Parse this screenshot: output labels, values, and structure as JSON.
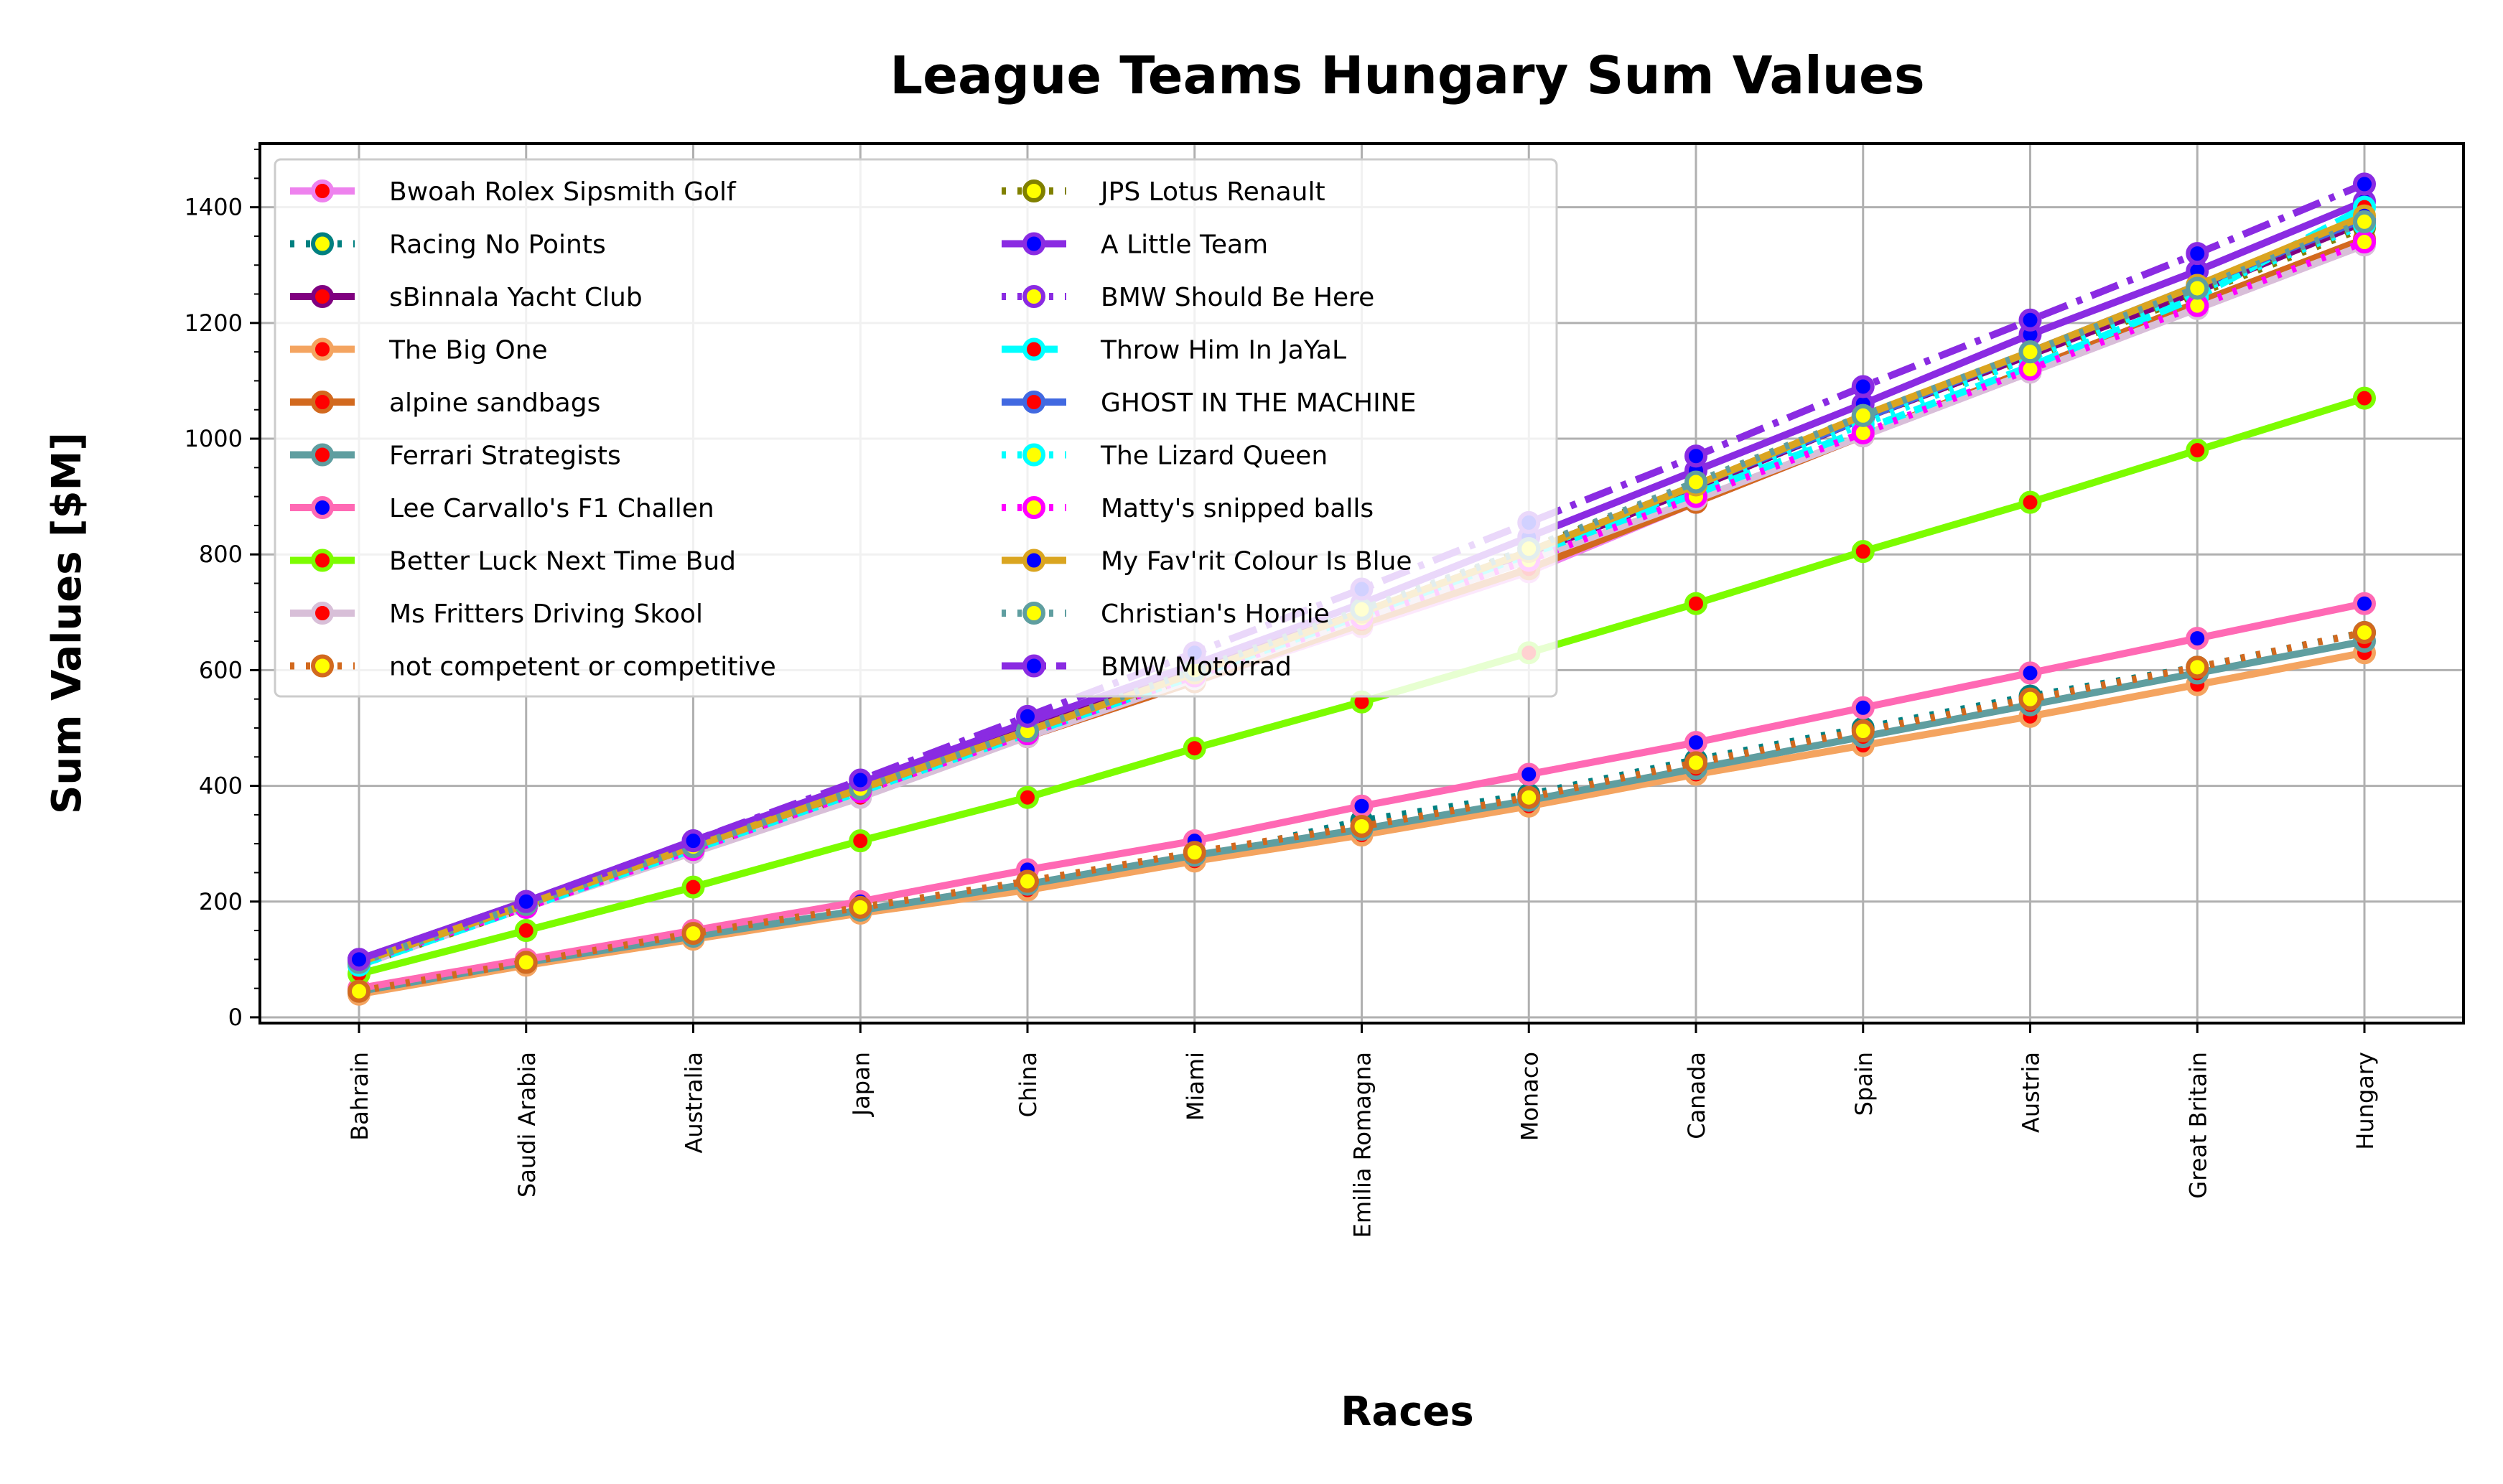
{
  "chart_data": {
    "type": "line",
    "title": "League Teams Hungary Sum Values",
    "xlabel": "Races",
    "ylabel": "Sum Values [$M]",
    "ylim": [
      -10,
      1510
    ],
    "yticks": [
      0,
      200,
      400,
      600,
      800,
      1000,
      1200,
      1400
    ],
    "grid": true,
    "legend_position": "upper-left",
    "categories": [
      "Bahrain",
      "Saudi Arabia",
      "Australia",
      "Japan",
      "China",
      "Miami",
      "Emilia Romagna",
      "Monaco",
      "Canada",
      "Spain",
      "Austria",
      "Great Britain",
      "Hungary"
    ],
    "series": [
      {
        "name": "Bwoah Rolex Sipsmith Golf",
        "color": "#ee82ee",
        "marker_fill": "#ff0000",
        "dash": "solid",
        "values": [
          95,
          195,
          295,
          390,
          485,
          580,
          675,
          770,
          890,
          1005,
          1115,
          1225,
          1335
        ]
      },
      {
        "name": "Racing No Points",
        "color": "#008080",
        "marker_fill": "#ffff00",
        "dash": "dot",
        "values": [
          45,
          95,
          140,
          185,
          225,
          275,
          340,
          385,
          445,
          500,
          555,
          605,
          665
        ]
      },
      {
        "name": "sBinnala Yacht Club",
        "color": "#800080",
        "marker_fill": "#ff0000",
        "dash": "solid",
        "values": [
          100,
          200,
          300,
          400,
          500,
          600,
          700,
          800,
          915,
          1035,
          1145,
          1255,
          1375
        ]
      },
      {
        "name": "The Big One",
        "color": "#f4a460",
        "marker_fill": "#ff0000",
        "dash": "solid",
        "values": [
          40,
          90,
          135,
          180,
          220,
          270,
          315,
          365,
          420,
          470,
          520,
          575,
          630
        ]
      },
      {
        "name": "alpine sandbags",
        "color": "#d2691e",
        "marker_fill": "#ff0000",
        "dash": "solid",
        "values": [
          95,
          190,
          290,
          385,
          485,
          580,
          680,
          775,
          890,
          1005,
          1120,
          1235,
          1345
        ]
      },
      {
        "name": "Ferrari Strategists",
        "color": "#5f9ea0",
        "marker_fill": "#ff0000",
        "dash": "solid",
        "values": [
          45,
          95,
          140,
          185,
          230,
          280,
          325,
          375,
          430,
          485,
          540,
          595,
          650
        ]
      },
      {
        "name": "Lee Carvallo's F1 Challen",
        "color": "#ff69b4",
        "marker_fill": "#0000ff",
        "dash": "solid",
        "values": [
          50,
          100,
          150,
          200,
          255,
          305,
          365,
          420,
          475,
          535,
          595,
          655,
          715
        ]
      },
      {
        "name": "Better Luck Next Time Bud",
        "color": "#7cfc00",
        "marker_fill": "#ff0000",
        "dash": "solid",
        "values": [
          75,
          150,
          225,
          305,
          380,
          465,
          545,
          630,
          715,
          805,
          890,
          980,
          1070
        ]
      },
      {
        "name": "Ms Fritters Driving Skool",
        "color": "#d8bfd8",
        "marker_fill": "#ff0000",
        "dash": "solid",
        "values": [
          90,
          190,
          285,
          380,
          485,
          585,
          690,
          790,
          895,
          1005,
          1115,
          1225,
          1335
        ]
      },
      {
        "name": "not competent or competitive",
        "color": "#d2691e",
        "marker_fill": "#ffff00",
        "dash": "dot",
        "values": [
          45,
          95,
          145,
          190,
          235,
          285,
          330,
          380,
          440,
          495,
          550,
          605,
          665
        ]
      },
      {
        "name": "JPS Lotus Renault",
        "color": "#808000",
        "marker_fill": "#ffff00",
        "dash": "dot",
        "values": [
          90,
          190,
          290,
          390,
          490,
          590,
          700,
          810,
          920,
          1035,
          1140,
          1250,
          1365
        ]
      },
      {
        "name": "A Little Team",
        "color": "#8a2be2",
        "marker_fill": "#0000ff",
        "dash": "solid",
        "values": [
          100,
          200,
          305,
          405,
          510,
          610,
          715,
          830,
          945,
          1060,
          1180,
          1290,
          1410
        ]
      },
      {
        "name": "BMW Should Be Here",
        "color": "#8a2be2",
        "marker_fill": "#ffff00",
        "dash": "dot",
        "values": [
          95,
          195,
          295,
          395,
          495,
          600,
          705,
          810,
          920,
          1035,
          1145,
          1255,
          1370
        ]
      },
      {
        "name": "Throw Him In JaYaL",
        "color": "#00ffff",
        "marker_fill": "#ff0000",
        "dash": "dash",
        "values": [
          90,
          190,
          290,
          390,
          490,
          590,
          695,
          800,
          905,
          1015,
          1125,
          1245,
          1400
        ]
      },
      {
        "name": "GHOST IN THE MACHINE",
        "color": "#4169e1",
        "marker_fill": "#ff0000",
        "dash": "solid",
        "values": [
          95,
          195,
          295,
          395,
          495,
          595,
          700,
          805,
          920,
          1035,
          1150,
          1265,
          1380
        ]
      },
      {
        "name": "The Lizard Queen",
        "color": "#00ffff",
        "marker_fill": "#ffff00",
        "dash": "dot",
        "values": [
          95,
          195,
          295,
          395,
          495,
          595,
          700,
          805,
          915,
          1025,
          1140,
          1255,
          1370
        ]
      },
      {
        "name": "Matty's snipped balls",
        "color": "#ff00ff",
        "marker_fill": "#ffff00",
        "dash": "dot",
        "values": [
          95,
          190,
          290,
          390,
          490,
          590,
          690,
          790,
          900,
          1010,
          1120,
          1230,
          1340
        ]
      },
      {
        "name": "My Fav'rit Colour Is Blue",
        "color": "#daa520",
        "marker_fill": "#0000ff",
        "dash": "solid",
        "values": [
          95,
          195,
          295,
          395,
          495,
          595,
          700,
          805,
          920,
          1040,
          1150,
          1265,
          1385
        ]
      },
      {
        "name": "Christian's Hornie",
        "color": "#5f9ea0",
        "marker_fill": "#ffff00",
        "dash": "dot",
        "values": [
          95,
          195,
          295,
          395,
          495,
          600,
          705,
          810,
          925,
          1040,
          1150,
          1260,
          1375
        ]
      },
      {
        "name": "BMW Motorrad",
        "color": "#8a2be2",
        "marker_fill": "#0000ff",
        "dash": "dashdot",
        "values": [
          100,
          200,
          305,
          410,
          520,
          630,
          740,
          855,
          970,
          1090,
          1205,
          1320,
          1440
        ]
      }
    ]
  }
}
